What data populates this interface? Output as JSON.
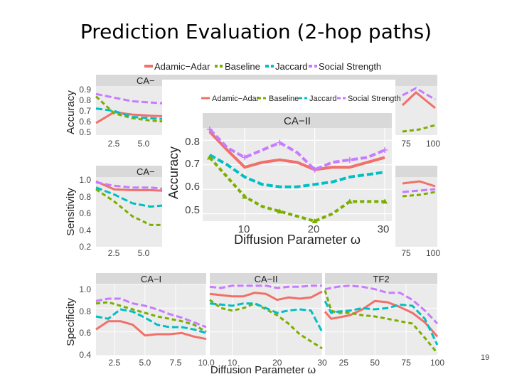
{
  "slide": {
    "title": "Prediction Evaluation (2-hop paths)",
    "number": "19"
  },
  "colors": {
    "adamic": "#f0706a",
    "baseline": "#7cae00",
    "jaccard": "#00bfc4",
    "social": "#c77cff",
    "strip": "#d9d9d9"
  },
  "legend": [
    "Adamic−Adar",
    "Baseline",
    "Jaccard",
    "Social Strength"
  ],
  "chart_data": [
    {
      "type": "line",
      "role": "specificity-CA-I",
      "title": "CA−I",
      "ylabel": "Specificity",
      "xlabel": "Diffusion Parameter ω",
      "ylim": [
        0.4,
        1.0
      ],
      "xlim": [
        1,
        10
      ],
      "xticks": [
        "2.5",
        "5.0",
        "7.5",
        "10.0"
      ],
      "yticks": [
        "0.4",
        "0.6",
        "0.8",
        "1.0"
      ],
      "x": [
        1,
        2,
        3,
        4,
        5,
        6,
        7,
        8,
        9,
        10
      ],
      "series": [
        {
          "name": "Adamic−Adar",
          "values": [
            0.62,
            0.69,
            0.69,
            0.66,
            0.57,
            0.58,
            0.58,
            0.59,
            0.56,
            0.54
          ]
        },
        {
          "name": "Baseline",
          "values": [
            0.84,
            0.85,
            0.82,
            0.79,
            0.76,
            0.73,
            0.71,
            0.69,
            0.66,
            0.6
          ]
        },
        {
          "name": "Jaccard",
          "values": [
            0.73,
            0.71,
            0.79,
            0.77,
            0.72,
            0.66,
            0.64,
            0.64,
            0.62,
            0.59
          ]
        },
        {
          "name": "Social Strength",
          "values": [
            0.86,
            0.88,
            0.88,
            0.84,
            0.82,
            0.79,
            0.75,
            0.72,
            0.68,
            0.64
          ]
        }
      ]
    },
    {
      "type": "line",
      "role": "specificity-CA-II",
      "title": "CA−II",
      "ylim": [
        0.4,
        1.0
      ],
      "xlim": [
        5,
        30
      ],
      "xticks": [
        "10",
        "20",
        "30"
      ],
      "x": [
        5,
        7.5,
        10,
        12.5,
        15,
        17.5,
        20,
        22.5,
        25,
        27.5,
        30
      ],
      "series": [
        {
          "name": "Adamic−Adar",
          "values": [
            0.92,
            0.91,
            0.9,
            0.9,
            0.93,
            0.92,
            0.87,
            0.89,
            0.88,
            0.89,
            0.94
          ]
        },
        {
          "name": "Baseline",
          "values": [
            0.87,
            0.8,
            0.78,
            0.8,
            0.84,
            0.79,
            0.74,
            0.67,
            0.58,
            0.52,
            0.46
          ]
        },
        {
          "name": "Jaccard",
          "values": [
            0.84,
            0.83,
            0.82,
            0.84,
            0.84,
            0.8,
            0.76,
            0.78,
            0.79,
            0.78,
            0.6
          ]
        },
        {
          "name": "Social Strength",
          "values": [
            0.98,
            0.97,
            0.99,
            0.99,
            0.99,
            0.99,
            0.97,
            0.98,
            0.98,
            0.99,
            0.99
          ]
        }
      ]
    },
    {
      "type": "line",
      "role": "specificity-TF2",
      "title": "TF2",
      "ylim": [
        0.4,
        1.0
      ],
      "xlim": [
        10,
        100
      ],
      "xticks": [
        "25",
        "50",
        "75",
        "100"
      ],
      "x": [
        10,
        15,
        20,
        30,
        40,
        50,
        60,
        70,
        80,
        90,
        100
      ],
      "series": [
        {
          "name": "Adamic−Adar",
          "values": [
            0.77,
            0.71,
            0.72,
            0.74,
            0.79,
            0.86,
            0.85,
            0.81,
            0.76,
            0.68,
            0.56
          ]
        },
        {
          "name": "Baseline",
          "values": [
            0.95,
            0.78,
            0.76,
            0.76,
            0.74,
            0.73,
            0.71,
            0.69,
            0.67,
            0.55,
            0.42
          ]
        },
        {
          "name": "Jaccard",
          "values": [
            0.86,
            0.76,
            0.77,
            0.78,
            0.8,
            0.79,
            0.8,
            0.83,
            0.82,
            0.71,
            0.49
          ]
        },
        {
          "name": "Social Strength",
          "values": [
            0.96,
            0.97,
            0.98,
            0.99,
            0.98,
            0.96,
            0.93,
            0.93,
            0.87,
            0.78,
            0.67
          ]
        }
      ]
    },
    {
      "type": "line",
      "role": "accuracy-CA-I-background",
      "title": "CA−",
      "ylabel": "Accuracy",
      "ylim": [
        0.5,
        0.9
      ],
      "xlim": [
        1,
        10
      ],
      "xticks": [
        "2.5",
        "5.0"
      ],
      "yticks": [
        "0.5",
        "0.6",
        "0.7",
        "0.8",
        "0.9"
      ],
      "right_xticks": [
        "75",
        "100"
      ],
      "x": [
        1,
        2,
        3,
        4,
        5,
        6
      ],
      "series": [
        {
          "name": "Adamic−Adar",
          "values": [
            0.6,
            0.69,
            0.67,
            0.66,
            0.655,
            0.65
          ]
        },
        {
          "name": "Baseline",
          "values": [
            0.82,
            0.68,
            0.64,
            0.62,
            0.61,
            0.6
          ]
        },
        {
          "name": "Jaccard",
          "values": [
            0.72,
            0.7,
            0.65,
            0.64,
            0.63,
            0.62
          ]
        },
        {
          "name": "Social Strength",
          "values": [
            0.84,
            0.81,
            0.78,
            0.77,
            0.76,
            0.75
          ]
        }
      ]
    },
    {
      "type": "line",
      "role": "sensitivity-CA-I-background",
      "title": "CA−",
      "ylabel": "Sensitivity",
      "ylim": [
        0.2,
        1.0
      ],
      "xlim": [
        1,
        10
      ],
      "xticks": [
        "2.5",
        "5.0"
      ],
      "yticks": [
        "0.2",
        "0.4",
        "0.6",
        "0.8",
        "1.0"
      ],
      "right_xticks": [
        "75",
        "100"
      ],
      "x": [
        1,
        2,
        3,
        4,
        5,
        6
      ],
      "series": [
        {
          "name": "Adamic−Adar",
          "values": [
            0.95,
            0.86,
            0.85,
            0.85,
            0.84,
            0.84
          ]
        },
        {
          "name": "Baseline",
          "values": [
            0.86,
            0.72,
            0.55,
            0.45,
            0.45,
            0.45
          ]
        },
        {
          "name": "Jaccard",
          "values": [
            0.88,
            0.8,
            0.7,
            0.66,
            0.68,
            0.7
          ]
        },
        {
          "name": "Social Strength",
          "values": [
            0.94,
            0.9,
            0.88,
            0.88,
            0.86,
            0.86
          ]
        }
      ]
    },
    {
      "type": "line",
      "role": "accuracy-CA-II-inset",
      "title": "CA−II",
      "ylabel": "Accuracy",
      "xlabel": "Diffusion Parameter ω",
      "ylim": [
        0.47,
        0.85
      ],
      "xlim": [
        4,
        31
      ],
      "xticks": [
        "10",
        "20",
        "30"
      ],
      "yticks": [
        "0.5",
        "0.6",
        "0.7",
        "0.8"
      ],
      "x": [
        5,
        7.5,
        10,
        12.5,
        15,
        17.5,
        20,
        22.5,
        25,
        27.5,
        30
      ],
      "series": [
        {
          "name": "Adamic−Adar",
          "values": [
            0.835,
            0.76,
            0.69,
            0.71,
            0.72,
            0.71,
            0.68,
            0.69,
            0.69,
            0.71,
            0.73
          ]
        },
        {
          "name": "Baseline",
          "values": [
            0.73,
            0.65,
            0.57,
            0.53,
            0.51,
            0.49,
            0.47,
            0.5,
            0.55,
            0.55,
            0.55
          ]
        },
        {
          "name": "Jaccard",
          "values": [
            0.74,
            0.7,
            0.65,
            0.62,
            0.61,
            0.61,
            0.62,
            0.63,
            0.65,
            0.66,
            0.67
          ]
        },
        {
          "name": "Social Strength",
          "values": [
            0.845,
            0.77,
            0.73,
            0.76,
            0.79,
            0.75,
            0.68,
            0.71,
            0.72,
            0.73,
            0.76
          ]
        }
      ]
    }
  ]
}
